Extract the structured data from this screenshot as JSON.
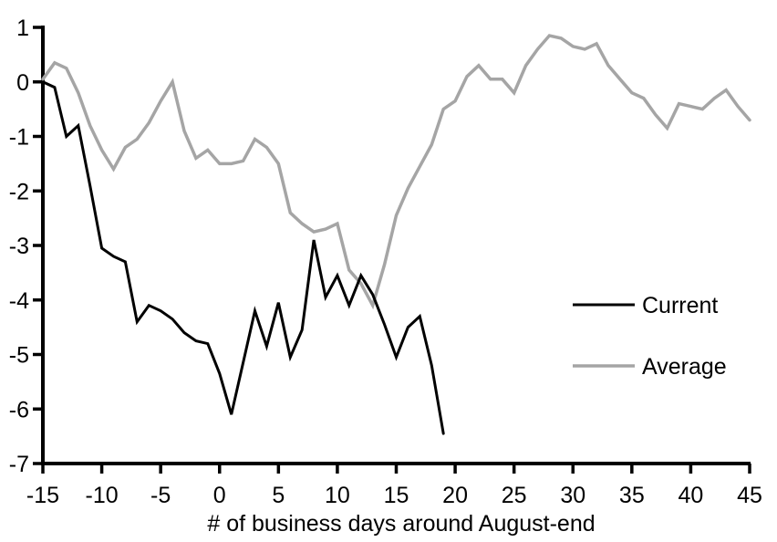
{
  "figure": {
    "background": "#ffffff",
    "axis_color": "#000000",
    "text_color": "#000000"
  },
  "chart_data": {
    "type": "line",
    "title": "",
    "xlabel": "# of business days around August-end",
    "ylabel": "",
    "xlim": [
      -15,
      45
    ],
    "ylim": [
      -7,
      1
    ],
    "xticks": [
      -15,
      -10,
      -5,
      0,
      5,
      10,
      15,
      20,
      25,
      30,
      35,
      40,
      45
    ],
    "yticks": [
      1,
      0,
      -1,
      -2,
      -3,
      -4,
      -5,
      -6,
      -7
    ],
    "grid": false,
    "legend_position": "middle-right",
    "series": [
      {
        "name": "Current",
        "color": "#000000",
        "stroke_width": 3,
        "x": [
          -15,
          -14,
          -13,
          -12,
          -11,
          -10,
          -9,
          -8,
          -7,
          -6,
          -5,
          -4,
          -3,
          -2,
          -1,
          0,
          1,
          2,
          3,
          4,
          5,
          6,
          7,
          8,
          9,
          10,
          11,
          12,
          13,
          14,
          15,
          16,
          17,
          18,
          19
        ],
        "values": [
          0,
          -0.1,
          -1.0,
          -0.8,
          -1.9,
          -3.05,
          -3.2,
          -3.3,
          -4.4,
          -4.1,
          -4.2,
          -4.35,
          -4.6,
          -4.75,
          -4.8,
          -5.35,
          -6.1,
          -5.15,
          -4.2,
          -4.85,
          -4.05,
          -5.05,
          -4.55,
          -2.9,
          -3.95,
          -3.55,
          -4.1,
          -3.55,
          -3.9,
          -4.45,
          -5.05,
          -4.5,
          -4.3,
          -5.2,
          -6.45
        ]
      },
      {
        "name": "Average",
        "color": "#a5a5a5",
        "stroke_width": 3.5,
        "x": [
          -15,
          -14,
          -13,
          -12,
          -11,
          -10,
          -9,
          -8,
          -7,
          -6,
          -5,
          -4,
          -3,
          -2,
          -1,
          0,
          1,
          2,
          3,
          4,
          5,
          6,
          7,
          8,
          9,
          10,
          11,
          12,
          13,
          14,
          15,
          16,
          17,
          18,
          19,
          20,
          21,
          22,
          23,
          24,
          25,
          26,
          27,
          28,
          29,
          30,
          31,
          32,
          33,
          34,
          35,
          36,
          37,
          38,
          39,
          40,
          41,
          42,
          43,
          44,
          45
        ],
        "values": [
          0.05,
          0.35,
          0.25,
          -0.2,
          -0.8,
          -1.25,
          -1.6,
          -1.2,
          -1.05,
          -0.75,
          -0.35,
          0.0,
          -0.9,
          -1.4,
          -1.25,
          -1.5,
          -1.5,
          -1.45,
          -1.05,
          -1.2,
          -1.5,
          -2.4,
          -2.6,
          -2.75,
          -2.7,
          -2.6,
          -3.45,
          -3.7,
          -4.1,
          -3.35,
          -2.45,
          -1.95,
          -1.55,
          -1.15,
          -0.5,
          -0.35,
          0.1,
          0.3,
          0.05,
          0.05,
          -0.2,
          0.3,
          0.6,
          0.85,
          0.8,
          0.65,
          0.6,
          0.7,
          0.3,
          0.05,
          -0.2,
          -0.3,
          -0.6,
          -0.85,
          -0.4,
          -0.45,
          -0.5,
          -0.3,
          -0.15,
          -0.45,
          -0.7
        ]
      }
    ]
  }
}
